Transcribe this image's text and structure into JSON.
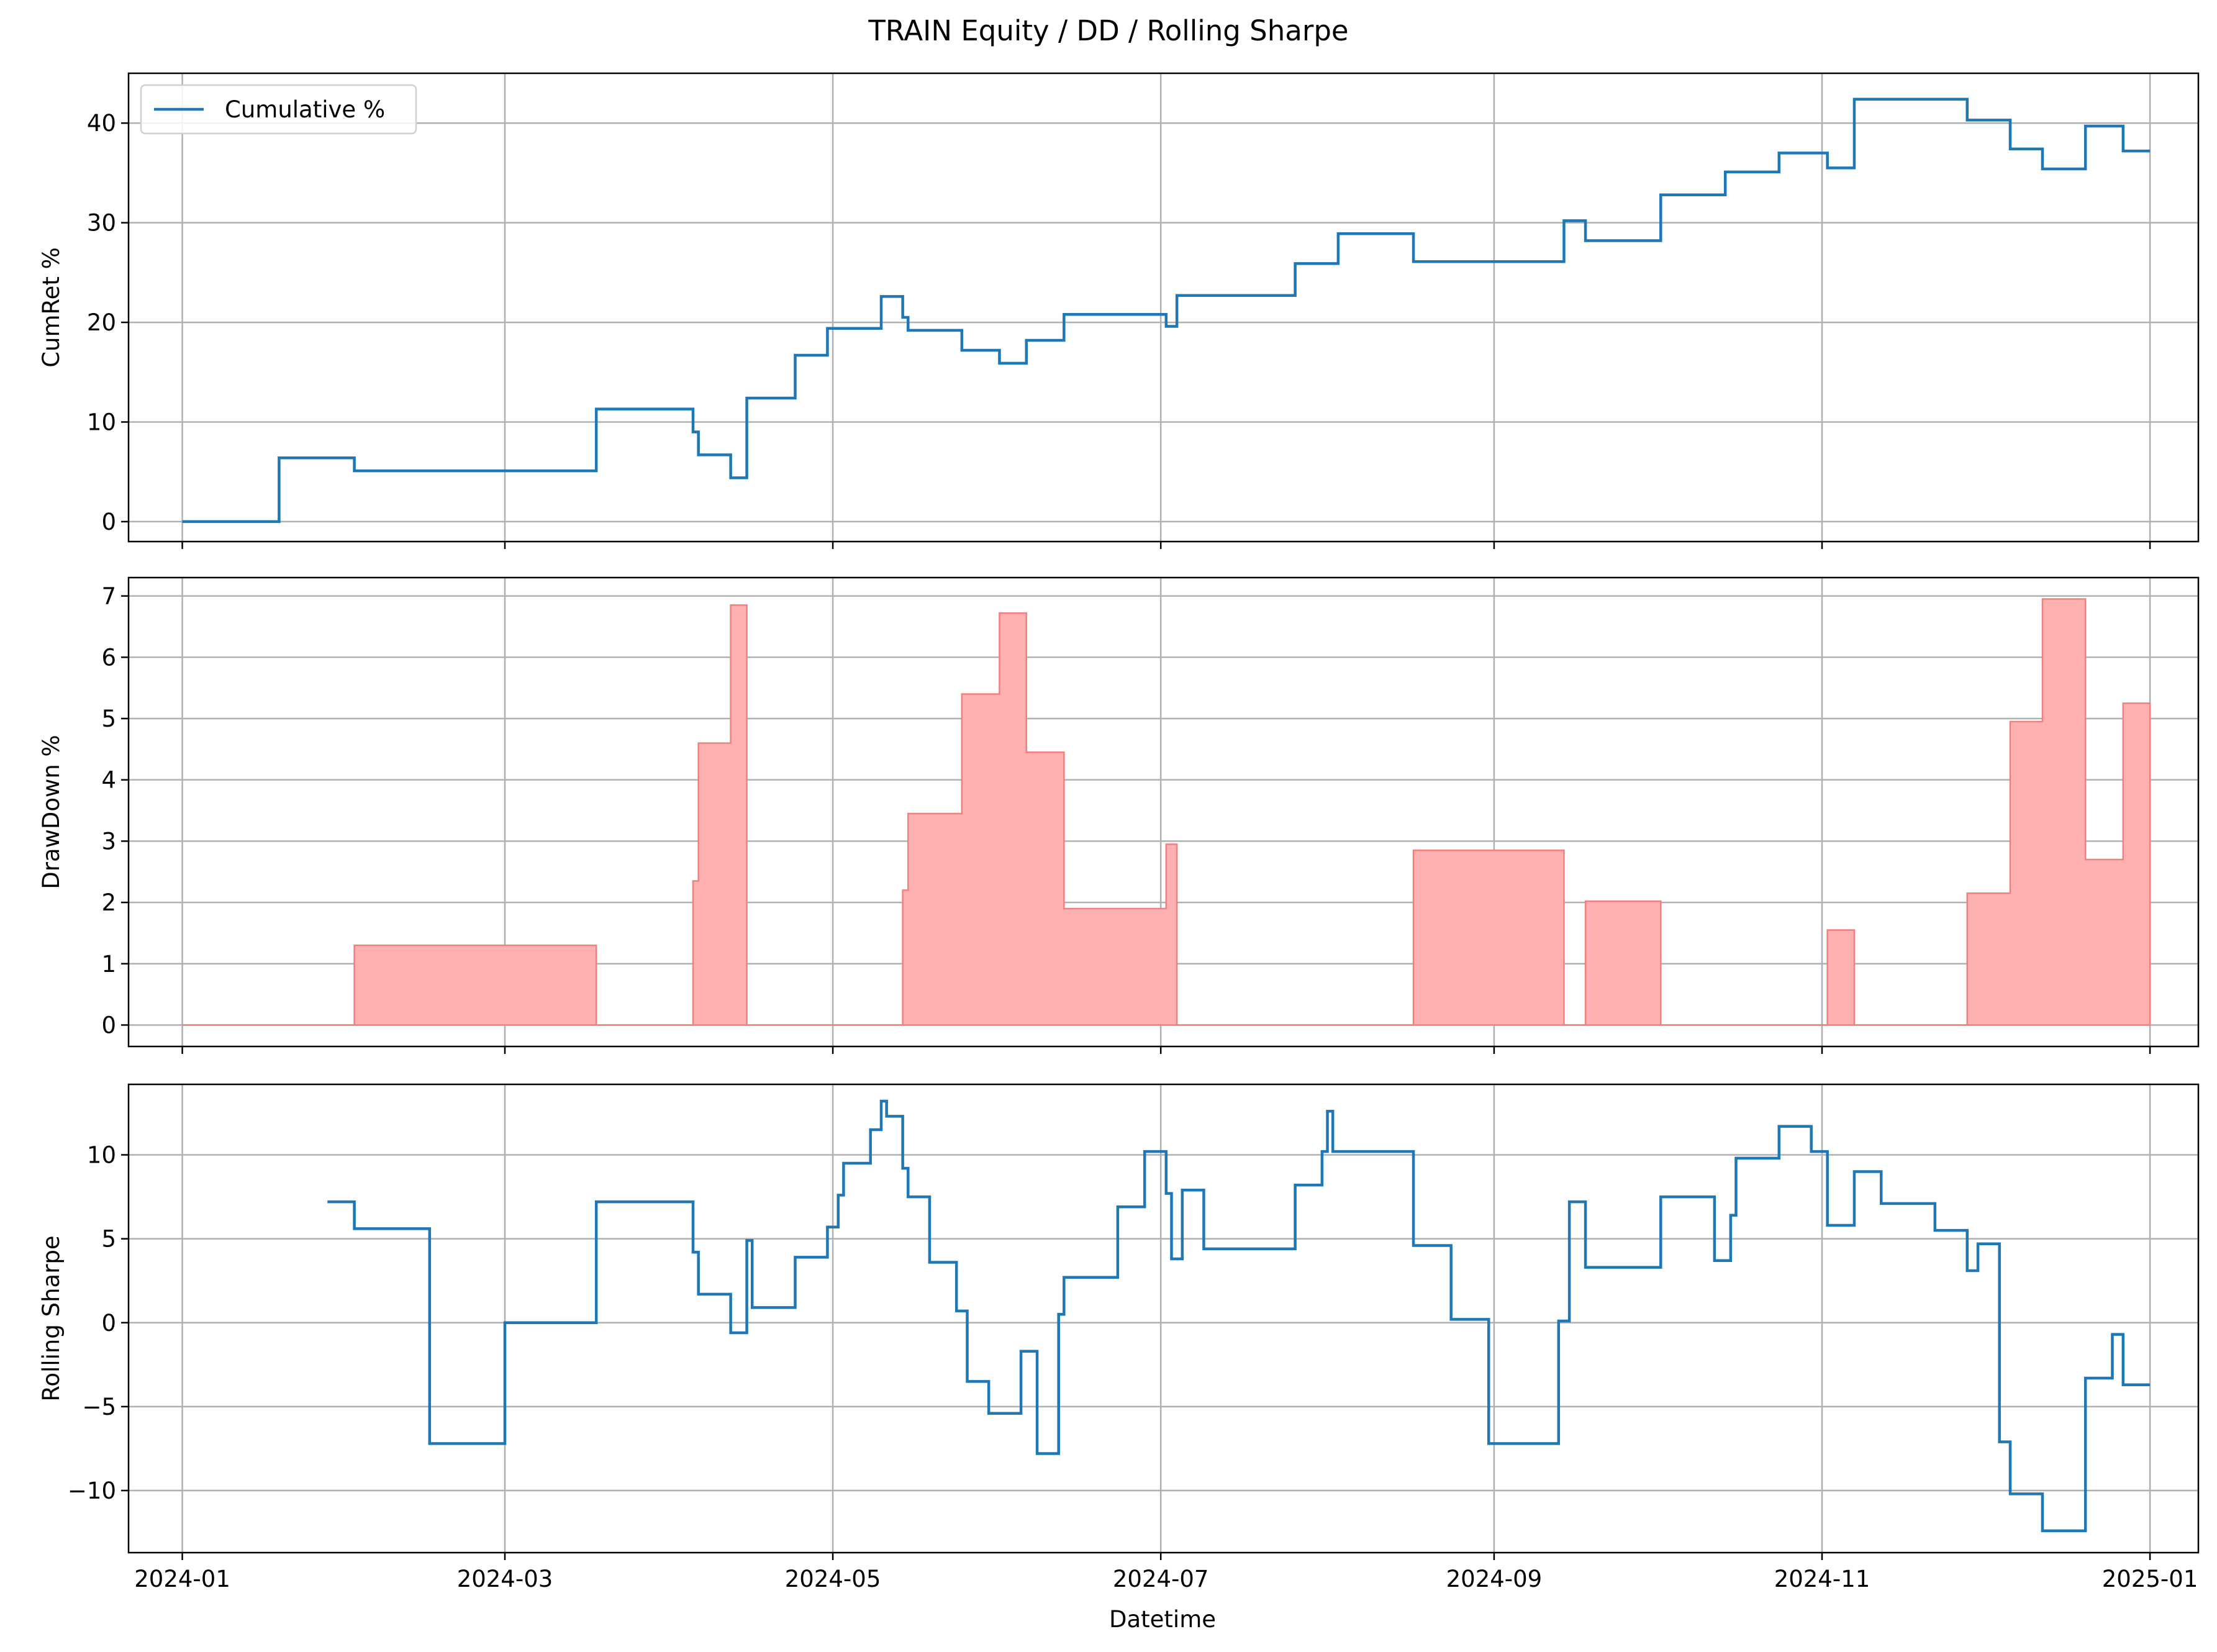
{
  "figure": {
    "title": "TRAIN  Equity / DD / Rolling Sharpe",
    "xlabel": "Datetime",
    "x_tick_labels": [
      "2024-01",
      "2024-03",
      "2024-05",
      "2024-07",
      "2024-09",
      "2024-11",
      "2025-01"
    ],
    "x_tick_dates": [
      "2024-01-01",
      "2024-03-01",
      "2024-05-01",
      "2024-07-01",
      "2024-09-01",
      "2024-11-01",
      "2025-01-01"
    ],
    "x_range": [
      "2023-12-22",
      "2025-01-10"
    ],
    "colors": {
      "line": "#1f77b4",
      "dd_fill": "#ffb0b0",
      "dd_edge": "#f08080",
      "grid": "#b0b0b0"
    }
  },
  "chart_data": [
    {
      "type": "line",
      "step": true,
      "ylabel": "CumRet %",
      "ylim": [
        -2,
        45
      ],
      "yticks": [
        0,
        10,
        20,
        30,
        40
      ],
      "grid": true,
      "legend": {
        "placement": "top-left",
        "entries": [
          "Cumulative %"
        ]
      },
      "series": [
        {
          "name": "Cumulative %",
          "x": [
            "2024-01-01",
            "2024-01-19",
            "2024-02-02",
            "2024-03-18",
            "2024-04-05",
            "2024-04-06",
            "2024-04-12",
            "2024-04-15",
            "2024-04-24",
            "2024-04-30",
            "2024-05-10",
            "2024-05-14",
            "2024-05-15",
            "2024-05-25",
            "2024-06-01",
            "2024-06-06",
            "2024-06-13",
            "2024-07-02",
            "2024-07-04",
            "2024-07-26",
            "2024-08-03",
            "2024-08-17",
            "2024-09-14",
            "2024-09-18",
            "2024-10-02",
            "2024-10-14",
            "2024-10-24",
            "2024-11-02",
            "2024-11-07",
            "2024-11-28",
            "2024-12-06",
            "2024-12-12",
            "2024-12-20",
            "2024-12-27",
            "2025-01-01"
          ],
          "y": [
            0,
            6.4,
            5.1,
            11.3,
            9.0,
            6.7,
            4.4,
            12.4,
            16.7,
            19.4,
            22.6,
            20.5,
            19.2,
            17.2,
            15.9,
            18.2,
            20.8,
            19.6,
            22.7,
            25.9,
            28.9,
            26.1,
            30.2,
            28.2,
            32.8,
            35.1,
            37.0,
            35.5,
            42.4,
            40.3,
            37.4,
            35.4,
            39.7,
            37.2,
            37.2
          ]
        }
      ]
    },
    {
      "type": "area",
      "step": true,
      "ylabel": "DrawDown %",
      "ylim": [
        -0.35,
        7.3
      ],
      "yticks": [
        0,
        1,
        2,
        3,
        4,
        5,
        6,
        7
      ],
      "grid": true,
      "series": [
        {
          "x": [
            "2024-01-01",
            "2024-02-02",
            "2024-03-18",
            "2024-04-05",
            "2024-04-06",
            "2024-04-12",
            "2024-04-15",
            "2024-05-14",
            "2024-05-15",
            "2024-05-25",
            "2024-06-01",
            "2024-06-06",
            "2024-06-13",
            "2024-07-02",
            "2024-07-04",
            "2024-08-17",
            "2024-09-14",
            "2024-09-18",
            "2024-10-02",
            "2024-11-02",
            "2024-11-07",
            "2024-11-28",
            "2024-12-06",
            "2024-12-12",
            "2024-12-20",
            "2024-12-27",
            "2025-01-01"
          ],
          "y": [
            0,
            1.3,
            0,
            2.35,
            4.6,
            6.85,
            0,
            2.2,
            3.45,
            5.4,
            6.72,
            4.45,
            1.9,
            2.95,
            0,
            2.85,
            0,
            2.02,
            0,
            1.55,
            0,
            2.15,
            4.95,
            6.95,
            2.7,
            5.25,
            5.25
          ]
        }
      ]
    },
    {
      "type": "line",
      "step": true,
      "ylabel": "Rolling Sharpe",
      "ylim": [
        -13.7,
        14.2
      ],
      "yticks": [
        -10,
        -5,
        0,
        5,
        10
      ],
      "grid": true,
      "series": [
        {
          "x": [
            "2024-01-28",
            "2024-02-02",
            "2024-02-16",
            "2024-03-01",
            "2024-03-18",
            "2024-04-05",
            "2024-04-06",
            "2024-04-12",
            "2024-04-15",
            "2024-04-16",
            "2024-04-24",
            "2024-04-30",
            "2024-05-02",
            "2024-05-03",
            "2024-05-08",
            "2024-05-10",
            "2024-05-11",
            "2024-05-14",
            "2024-05-15",
            "2024-05-19",
            "2024-05-24",
            "2024-05-26",
            "2024-05-30",
            "2024-06-05",
            "2024-06-08",
            "2024-06-12",
            "2024-06-13",
            "2024-06-23",
            "2024-06-28",
            "2024-07-02",
            "2024-07-03",
            "2024-07-05",
            "2024-07-09",
            "2024-07-26",
            "2024-07-31",
            "2024-08-01",
            "2024-08-02",
            "2024-08-17",
            "2024-08-24",
            "2024-08-31",
            "2024-09-13",
            "2024-09-15",
            "2024-09-18",
            "2024-10-02",
            "2024-10-12",
            "2024-10-15",
            "2024-10-16",
            "2024-10-24",
            "2024-10-30",
            "2024-11-02",
            "2024-11-07",
            "2024-11-12",
            "2024-11-22",
            "2024-11-28",
            "2024-11-30",
            "2024-12-04",
            "2024-12-06",
            "2024-12-12",
            "2024-12-20",
            "2024-12-25",
            "2024-12-27",
            "2025-01-01"
          ],
          "y": [
            7.2,
            5.6,
            -7.2,
            0,
            7.2,
            4.2,
            1.7,
            -0.6,
            4.9,
            0.9,
            3.9,
            5.7,
            7.6,
            9.5,
            11.5,
            13.2,
            12.3,
            9.2,
            7.5,
            3.6,
            0.7,
            -3.5,
            -5.4,
            -1.7,
            -7.8,
            0.5,
            2.7,
            6.9,
            10.2,
            7.7,
            3.8,
            7.9,
            4.4,
            8.2,
            10.2,
            12.6,
            10.2,
            4.6,
            0.2,
            -7.2,
            0.1,
            7.2,
            3.3,
            7.5,
            3.7,
            6.4,
            9.8,
            11.7,
            10.2,
            5.8,
            9.0,
            7.1,
            5.5,
            3.1,
            4.7,
            -7.1,
            -10.2,
            -12.4,
            -3.3,
            -0.7,
            -3.7,
            -3.7
          ]
        }
      ]
    }
  ]
}
